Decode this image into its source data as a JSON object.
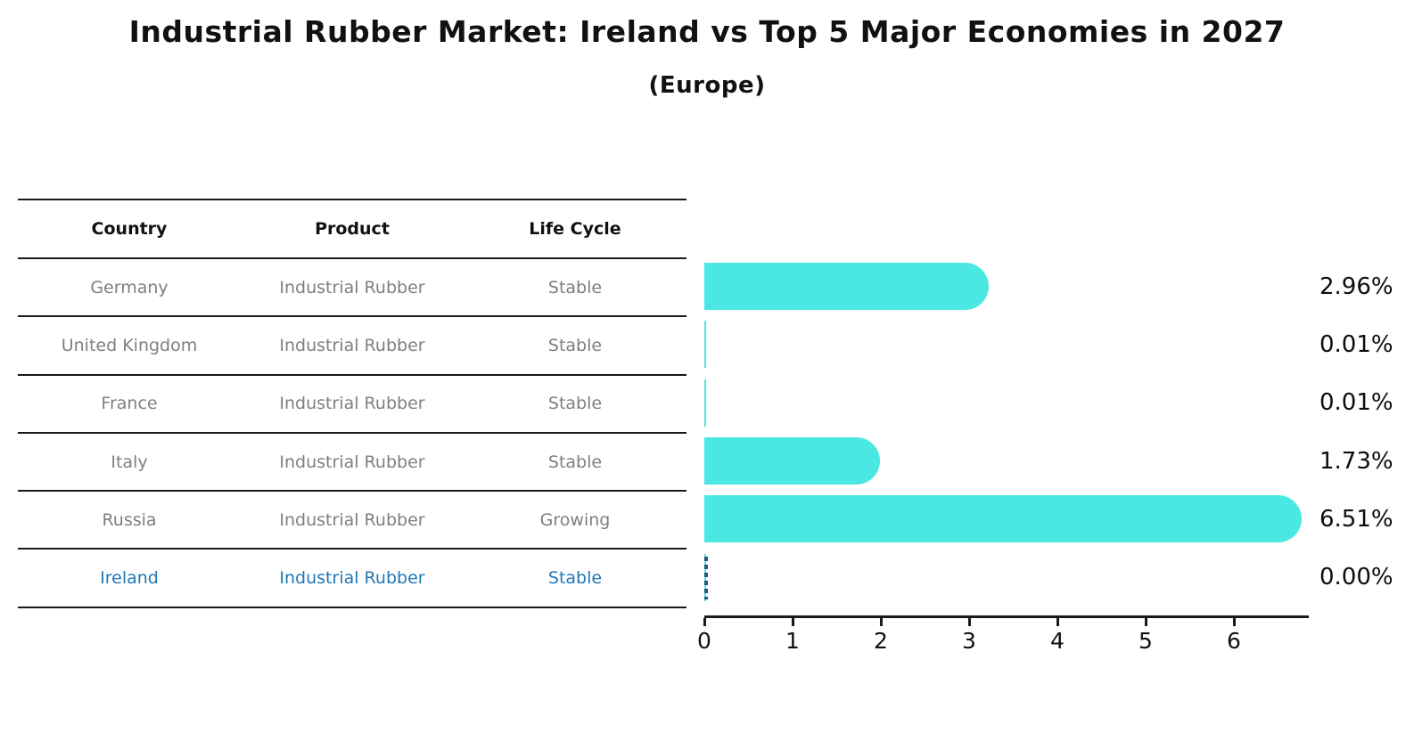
{
  "title": "Industrial Rubber Market: Ireland vs Top 5 Major Economies in 2027",
  "subtitle": "(Europe)",
  "table": {
    "headers": [
      "Country",
      "Product",
      "Life Cycle"
    ]
  },
  "rows": [
    {
      "country": "Germany",
      "product": "Industrial Rubber",
      "life_cycle": "Stable",
      "value": 2.96,
      "label": "2.96%",
      "highlight": false
    },
    {
      "country": "United Kingdom",
      "product": "Industrial Rubber",
      "life_cycle": "Stable",
      "value": 0.01,
      "label": "0.01%",
      "highlight": false
    },
    {
      "country": "France",
      "product": "Industrial Rubber",
      "life_cycle": "Stable",
      "value": 0.01,
      "label": "0.01%",
      "highlight": false
    },
    {
      "country": "Italy",
      "product": "Industrial Rubber",
      "life_cycle": "Stable",
      "value": 1.73,
      "label": "1.73%",
      "highlight": false
    },
    {
      "country": "Russia",
      "product": "Industrial Rubber",
      "life_cycle": "Growing",
      "value": 6.51,
      "label": "6.51%",
      "highlight": false
    },
    {
      "country": "Ireland",
      "product": "Industrial Rubber",
      "life_cycle": "Stable",
      "value": 0.0,
      "label": "0.00%",
      "highlight": true
    }
  ],
  "chart_data": {
    "type": "bar",
    "orientation": "horizontal",
    "title": "Industrial Rubber Market: Ireland vs Top 5 Major Economies in 2027 (Europe)",
    "categories": [
      "Germany",
      "United Kingdom",
      "France",
      "Italy",
      "Russia",
      "Ireland"
    ],
    "values": [
      2.96,
      0.01,
      0.01,
      1.73,
      6.51,
      0.0
    ],
    "value_labels": [
      "2.96%",
      "0.01%",
      "0.01%",
      "1.73%",
      "6.51%",
      "0.00%"
    ],
    "xlabel": "",
    "ylabel": "",
    "xlim": [
      0,
      6.85
    ],
    "xticks": [
      0,
      1,
      2,
      3,
      4,
      5,
      6
    ],
    "xtick_labels": [
      "0",
      "1",
      "2",
      "3",
      "4",
      "5",
      "6"
    ],
    "grid": false,
    "legend": false,
    "bar_color": "#4BE8E3",
    "highlight_index": 5,
    "highlight_marker": "dashed-blue-zero-line"
  },
  "colors": {
    "bar": "#4BE8E3",
    "highlight_text": "#1f77b4",
    "row_text": "#7f7f7f",
    "heading_text": "#111111",
    "table_line": "#1a1a1a",
    "axis": "#1a1a1a",
    "dashed_marker": "#27567f",
    "background": "#ffffff"
  }
}
